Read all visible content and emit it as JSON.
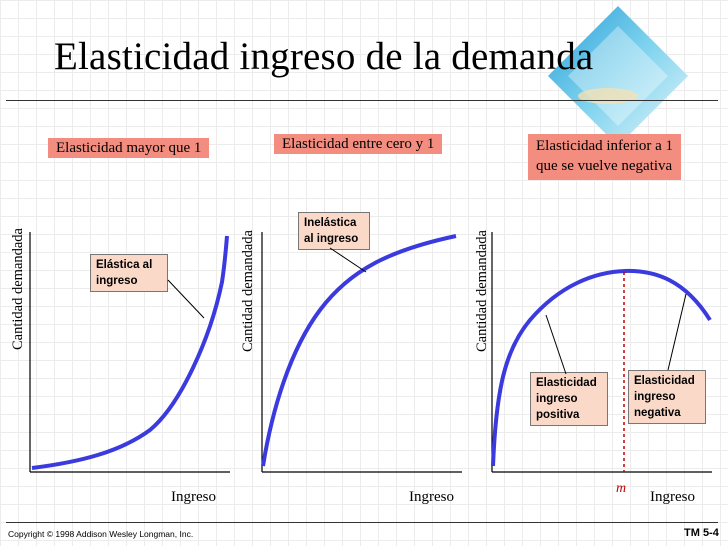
{
  "slide": {
    "title": "Elasticidad ingreso de la demanda",
    "footer_copyright": "Copyright © 1998 Addison Wesley Longman, Inc.",
    "footer_page": "TM 5-4"
  },
  "colors": {
    "curve": "#3a3adf",
    "header_box": "#f38d80",
    "callout_box": "#fbd9c8",
    "marker": "#c00000"
  },
  "panels": [
    {
      "header": "Elasticidad mayor que 1",
      "ylabel": "Cantidad demandada",
      "xlabel": "Ingreso",
      "callout": "Elástica al\ningreso"
    },
    {
      "header": "Elasticidad entre cero y 1",
      "ylabel": "Cantidad demandada",
      "xlabel": "Ingreso",
      "callout": "Inelástica\nal ingreso"
    },
    {
      "header": "Elasticidad inferior a 1\nque se vuelve negativa",
      "ylabel": "Cantidad demandada",
      "xlabel": "Ingreso",
      "marker_label": "m",
      "callout_left": "Elasticidad\ningreso\npositiva",
      "callout_right": "Elasticidad\ningreso\nnegativa"
    }
  ]
}
